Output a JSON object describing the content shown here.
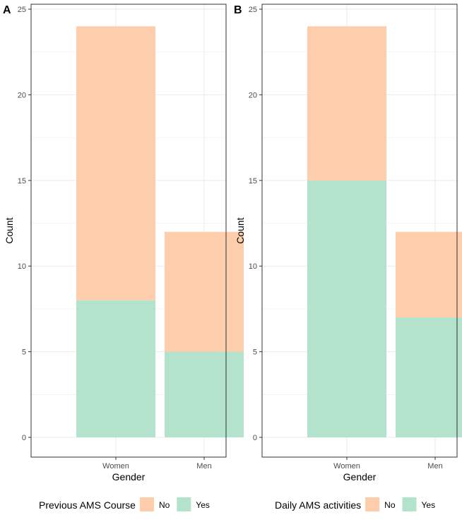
{
  "colors": {
    "No": "#fdcdac",
    "Yes": "#b3e2cd",
    "grid": "#ebebeb",
    "frame": "#333333"
  },
  "chart_data": [
    {
      "type": "bar",
      "stacked": true,
      "panel_tag": "A",
      "categories": [
        "Women",
        "Men"
      ],
      "series": [
        {
          "name": "Yes",
          "values": [
            8,
            5
          ]
        },
        {
          "name": "No",
          "values": [
            16,
            7
          ]
        }
      ],
      "xlabel": "Gender",
      "ylabel": "Count",
      "yticks": [
        0,
        5,
        10,
        15,
        20,
        25
      ],
      "ylim": [
        0,
        25
      ],
      "legend_title": "Previous AMS Course",
      "legend_placement": "bottom",
      "grid": true
    },
    {
      "type": "bar",
      "stacked": true,
      "panel_tag": "B",
      "categories": [
        "Women",
        "Men"
      ],
      "series": [
        {
          "name": "Yes",
          "values": [
            15,
            7
          ]
        },
        {
          "name": "No",
          "values": [
            9,
            5
          ]
        }
      ],
      "xlabel": "Gender",
      "ylabel": "Count",
      "yticks": [
        0,
        5,
        10,
        15,
        20,
        25
      ],
      "ylim": [
        0,
        25
      ],
      "legend_title": "Daily AMS activities",
      "legend_placement": "bottom",
      "grid": true
    }
  ],
  "legend_order": [
    "No",
    "Yes"
  ]
}
